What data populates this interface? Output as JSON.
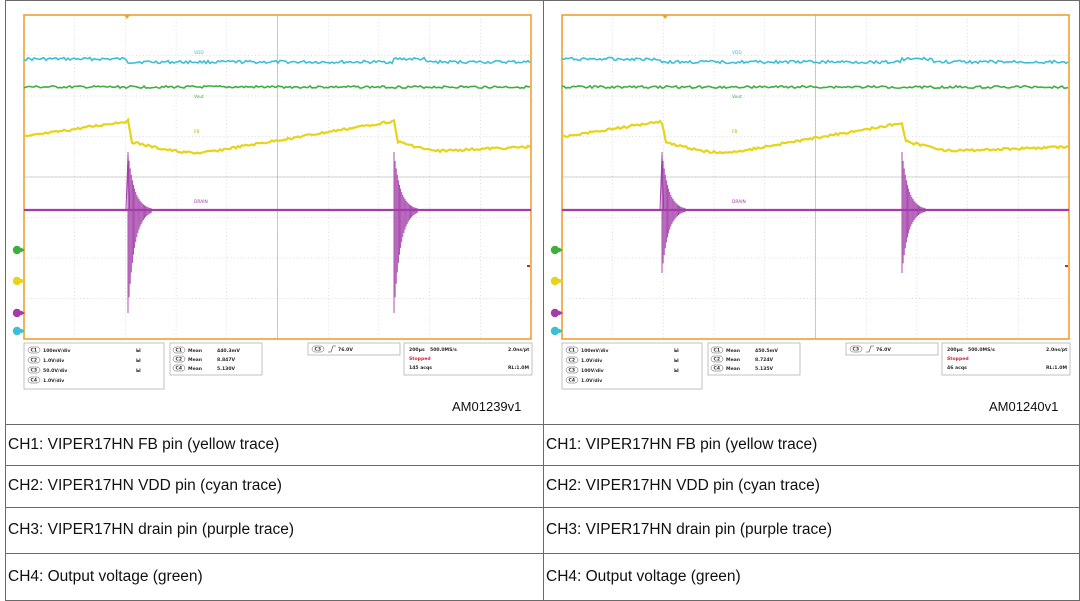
{
  "figures": [
    {
      "id": "AM01239v1",
      "trace_labels": {
        "vdd": "VDD",
        "vout": "Vout",
        "fb": "FB",
        "drain": "DRAIN"
      },
      "channels": [
        {
          "tag": "C1",
          "scale": "100mV/div"
        },
        {
          "tag": "C2",
          "scale": "1.0V/div"
        },
        {
          "tag": "C3",
          "scale": "50.0V/div"
        },
        {
          "tag": "C4",
          "scale": "1.0V/div"
        }
      ],
      "measurements": [
        {
          "tag": "C1",
          "name": "Mean",
          "value": "440.3mV"
        },
        {
          "tag": "C2",
          "name": "Mean",
          "value": "8.847V"
        },
        {
          "tag": "C4",
          "name": "Mean",
          "value": "5.130V"
        }
      ],
      "trigger": {
        "tag": "C3",
        "value": "76.0V"
      },
      "timebase": "200µs",
      "sample_rate": "500.0MS/s",
      "resolution": "2.0ns/pt",
      "status": "Stopped",
      "acqs": "145 acqs",
      "record": "RL:1.0M"
    },
    {
      "id": "AM01240v1",
      "trace_labels": {
        "vdd": "VDD",
        "vout": "Vout",
        "fb": "FB",
        "drain": "DRAIN"
      },
      "channels": [
        {
          "tag": "C1",
          "scale": "100mV/div"
        },
        {
          "tag": "C2",
          "scale": "1.0V/div"
        },
        {
          "tag": "C3",
          "scale": "100V/div"
        },
        {
          "tag": "C4",
          "scale": "1.0V/div"
        }
      ],
      "measurements": [
        {
          "tag": "C1",
          "name": "Mean",
          "value": "450.5mV"
        },
        {
          "tag": "C2",
          "name": "Mean",
          "value": "8.724V"
        },
        {
          "tag": "C4",
          "name": "Mean",
          "value": "5.135V"
        }
      ],
      "trigger": {
        "tag": "C3",
        "value": "76.0V"
      },
      "timebase": "200µs",
      "sample_rate": "500.0MS/s",
      "resolution": "2.0ns/pt",
      "status": "Stopped",
      "acqs": "46 acqs",
      "record": "RL:1.0M"
    }
  ],
  "captions": [
    [
      "CH1: VIPER17HN FB pin (yellow trace)",
      "CH1: VIPER17HN FB pin (yellow trace)"
    ],
    [
      "CH2: VIPER17HN VDD pin (cyan trace)",
      "CH2: VIPER17HN VDD pin (cyan trace)"
    ],
    [
      "CH3: VIPER17HN drain pin (purple trace)",
      "CH3: VIPER17HN drain pin (purple trace)"
    ],
    [
      "CH4: Output voltage (green)",
      "CH4: Output voltage (green)"
    ]
  ],
  "colors": {
    "ch1_fb": "#e6d41a",
    "ch2_vdd": "#3bbfd6",
    "ch3_drain": "#a23da8",
    "ch4_vout": "#3fae3f",
    "graticule_frame": "#f0a030",
    "grid": "#bdbdbd"
  }
}
